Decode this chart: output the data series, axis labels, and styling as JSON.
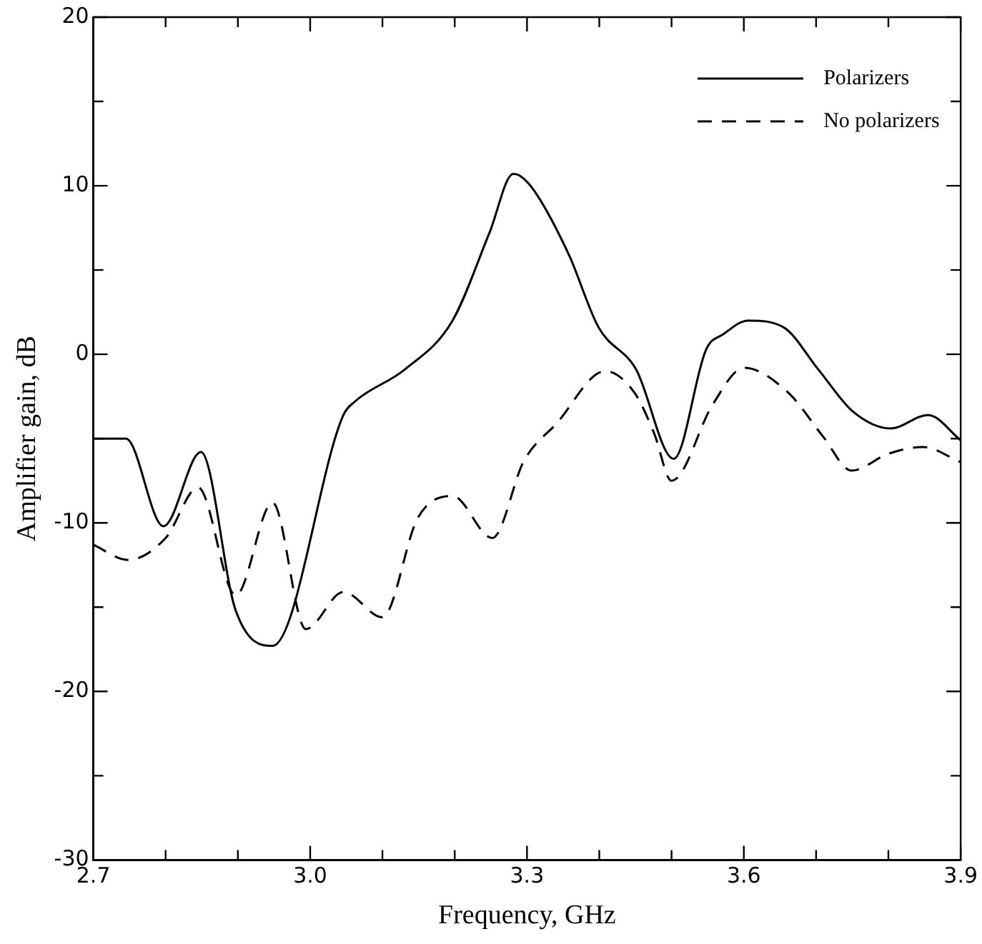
{
  "chart_data": {
    "type": "line",
    "xlabel": "Frequency, GHz",
    "ylabel": "Amplifier gain, dB",
    "xlim": [
      2.7,
      3.9
    ],
    "ylim": [
      -30,
      20
    ],
    "xticks": [
      {
        "value": 2.7,
        "label": "2.7"
      },
      {
        "value": 2.8,
        "label": null
      },
      {
        "value": 2.9,
        "label": null
      },
      {
        "value": 3.0,
        "label": "3.0"
      },
      {
        "value": 3.1,
        "label": null
      },
      {
        "value": 3.2,
        "label": null
      },
      {
        "value": 3.3,
        "label": "3.3"
      },
      {
        "value": 3.4,
        "label": null
      },
      {
        "value": 3.5,
        "label": null
      },
      {
        "value": 3.6,
        "label": "3.6"
      },
      {
        "value": 3.7,
        "label": null
      },
      {
        "value": 3.8,
        "label": null
      },
      {
        "value": 3.9,
        "label": "3.9"
      }
    ],
    "yticks": [
      -30,
      {
        "value": -25,
        "label": null
      },
      -20,
      {
        "value": -15,
        "label": null
      },
      -10,
      {
        "value": -5,
        "label": null
      },
      0,
      {
        "value": 5,
        "label": null
      },
      10,
      {
        "value": 15,
        "label": null
      },
      20
    ],
    "legend": "top right",
    "marker": "none",
    "series": [
      {
        "name": "Polarizers",
        "color": "#000000",
        "line_style": "solid",
        "x": [
          2.7,
          2.745,
          2.797,
          2.849,
          2.897,
          2.948,
          3.046,
          3.062,
          3.131,
          3.197,
          3.248,
          3.281,
          3.29,
          3.31,
          3.358,
          3.399,
          3.451,
          3.503,
          3.548,
          3.572,
          3.606,
          3.655,
          3.703,
          3.751,
          3.803,
          3.855,
          3.9
        ],
        "values": [
          -5.0,
          -5.0,
          -10.2,
          -5.8,
          -15.2,
          -17.3,
          -3.6,
          -2.8,
          -0.9,
          2.0,
          7.2,
          10.7,
          10.6,
          9.7,
          5.9,
          1.6,
          -0.9,
          -6.2,
          0.3,
          1.2,
          2.0,
          1.6,
          -0.9,
          -3.4,
          -4.4,
          -3.6,
          -5.1
        ]
      },
      {
        "name": "No polarizers",
        "color": "#000000",
        "line_style": "dashed",
        "x": [
          2.7,
          2.748,
          2.8,
          2.845,
          2.897,
          2.948,
          2.994,
          3.046,
          3.1,
          3.149,
          3.197,
          3.252,
          3.296,
          3.341,
          3.408,
          3.449,
          3.476,
          3.5,
          3.558,
          3.6,
          3.662,
          3.71,
          3.749,
          3.8,
          3.848,
          3.9
        ],
        "values": [
          -11.3,
          -12.2,
          -10.9,
          -7.9,
          -14.3,
          -8.8,
          -16.3,
          -14.1,
          -15.6,
          -9.7,
          -8.4,
          -10.9,
          -6.3,
          -4.1,
          -1.0,
          -2.3,
          -4.7,
          -7.5,
          -2.9,
          -0.8,
          -2.3,
          -4.9,
          -6.9,
          -5.9,
          -5.5,
          -6.4
        ]
      }
    ]
  }
}
